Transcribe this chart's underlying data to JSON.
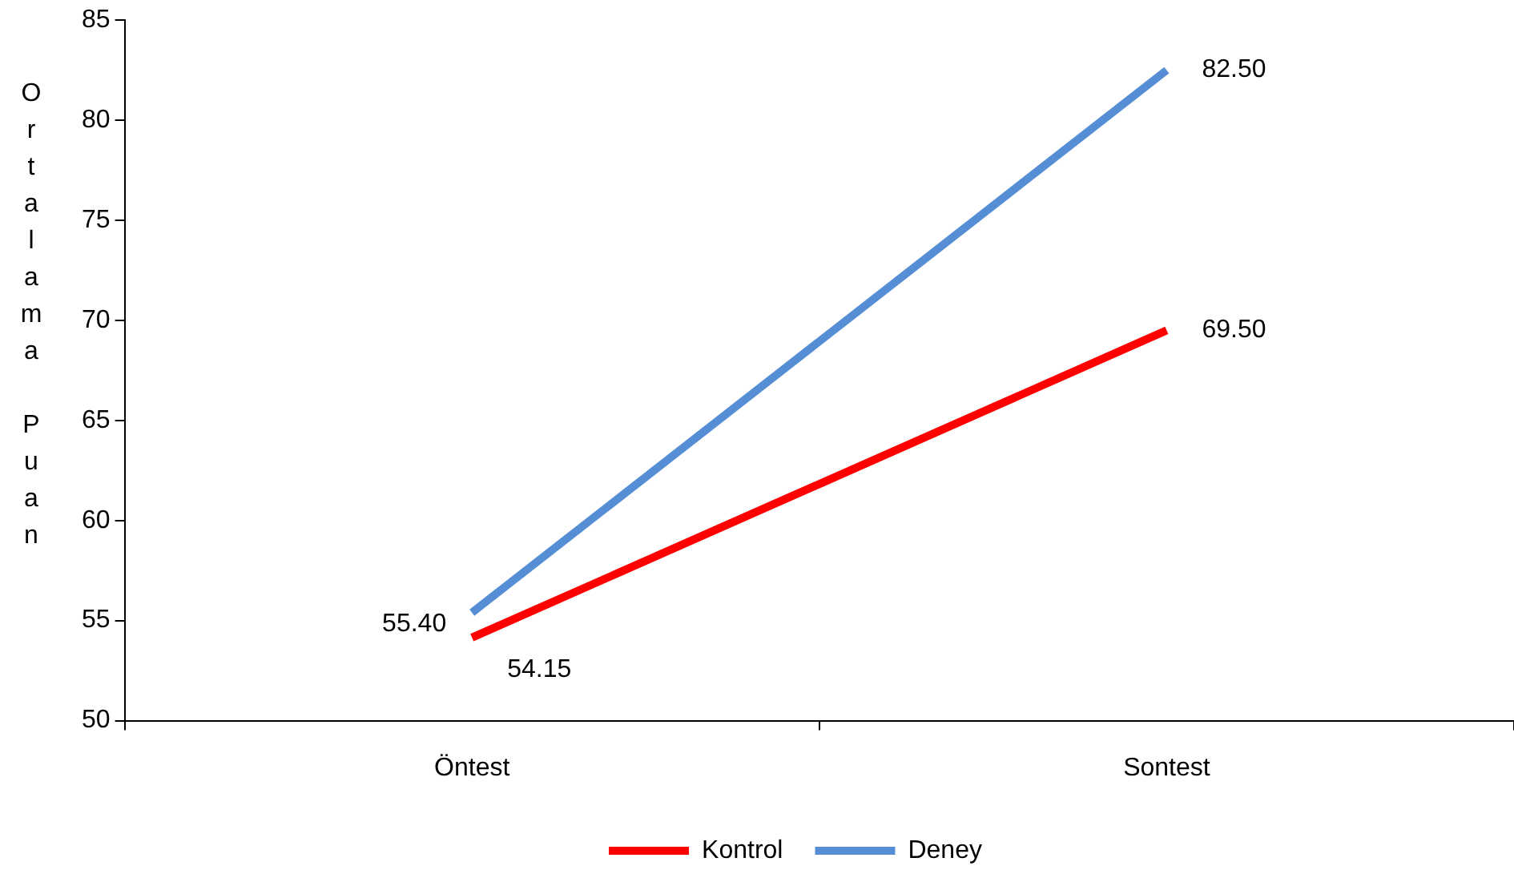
{
  "chart_data": {
    "type": "line",
    "ylabel": "Ortalama Puan",
    "categories": [
      "Öntest",
      "Sontest"
    ],
    "series": [
      {
        "name": "Kontrol",
        "color": "#ff0000",
        "values": [
          54.15,
          69.5
        ],
        "value_labels": [
          "54.15",
          "69.50"
        ]
      },
      {
        "name": "Deney",
        "color": "#558ed5",
        "values": [
          55.4,
          82.5
        ],
        "value_labels": [
          "55.40",
          "82.50"
        ]
      }
    ],
    "ylim": [
      50,
      85
    ],
    "yticks": [
      50,
      55,
      60,
      65,
      70,
      75,
      80,
      85
    ],
    "grid": false,
    "legend": "bottom",
    "marker": "none",
    "line_style": "solid"
  }
}
